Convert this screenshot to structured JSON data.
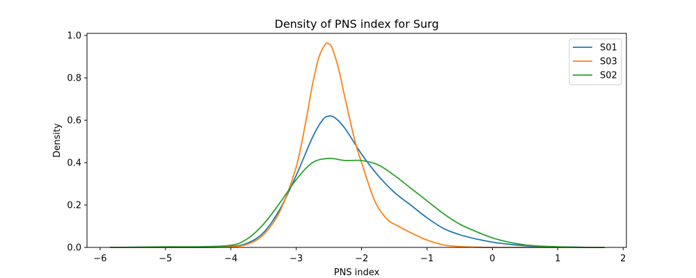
{
  "chart_data": {
    "type": "line",
    "title": "Density of PNS index for Surg",
    "xlabel": "PNS index",
    "ylabel": "Density",
    "xlim": [
      -6.2,
      2.05
    ],
    "ylim": [
      0,
      1.01
    ],
    "xticks": [
      -6,
      -5,
      -4,
      -3,
      -2,
      -1,
      0,
      1,
      2
    ],
    "xtick_labels": [
      "−6",
      "−5",
      "−4",
      "−3",
      "−2",
      "−1",
      "0",
      "1",
      "2"
    ],
    "yticks": [
      0,
      0.2,
      0.4,
      0.6,
      0.8,
      1.0
    ],
    "ytick_labels": [
      "0.0",
      "0.2",
      "0.4",
      "0.6",
      "0.8",
      "1.0"
    ],
    "grid": false,
    "legend_position": "top-right",
    "series": [
      {
        "name": "S01",
        "color": "#1f77b4",
        "x": [
          -5.85,
          -5.0,
          -4.5,
          -4.0,
          -3.75,
          -3.5,
          -3.25,
          -3.0,
          -2.75,
          -2.6,
          -2.5,
          -2.4,
          -2.25,
          -2.0,
          -1.75,
          -1.5,
          -1.25,
          -1.0,
          -0.75,
          -0.5,
          -0.25,
          0.0,
          0.25,
          0.5,
          0.75,
          1.0,
          1.25,
          1.5,
          1.72
        ],
        "values": [
          0.0,
          0.0,
          0.0,
          0.005,
          0.02,
          0.07,
          0.18,
          0.34,
          0.52,
          0.6,
          0.62,
          0.61,
          0.56,
          0.44,
          0.34,
          0.26,
          0.2,
          0.14,
          0.09,
          0.06,
          0.04,
          0.025,
          0.015,
          0.008,
          0.004,
          0.002,
          0.001,
          0.0,
          0.0
        ]
      },
      {
        "name": "S03",
        "color": "#ff7f0e",
        "x": [
          -5.85,
          -5.0,
          -4.5,
          -4.0,
          -3.75,
          -3.5,
          -3.25,
          -3.0,
          -2.85,
          -2.75,
          -2.65,
          -2.55,
          -2.5,
          -2.45,
          -2.35,
          -2.25,
          -2.1,
          -2.0,
          -1.85,
          -1.75,
          -1.6,
          -1.5,
          -1.25,
          -1.0,
          -0.75,
          -0.5,
          -0.25,
          0.0,
          0.5,
          1.0,
          1.5,
          1.72
        ],
        "values": [
          0.0,
          0.0,
          0.0,
          0.003,
          0.015,
          0.06,
          0.17,
          0.38,
          0.6,
          0.77,
          0.9,
          0.96,
          0.96,
          0.94,
          0.84,
          0.7,
          0.5,
          0.4,
          0.26,
          0.19,
          0.13,
          0.11,
          0.07,
          0.035,
          0.012,
          0.004,
          0.001,
          0.0,
          0.0,
          0.0,
          0.0,
          0.0
        ]
      },
      {
        "name": "S02",
        "color": "#2ca02c",
        "x": [
          -5.85,
          -5.0,
          -4.5,
          -4.0,
          -3.75,
          -3.5,
          -3.25,
          -3.0,
          -2.75,
          -2.5,
          -2.25,
          -2.0,
          -1.75,
          -1.5,
          -1.25,
          -1.0,
          -0.75,
          -0.5,
          -0.25,
          0.0,
          0.25,
          0.5,
          0.75,
          1.0,
          1.25,
          1.5,
          1.72
        ],
        "values": [
          0.0,
          0.003,
          0.003,
          0.01,
          0.04,
          0.11,
          0.21,
          0.32,
          0.4,
          0.42,
          0.41,
          0.41,
          0.39,
          0.34,
          0.28,
          0.22,
          0.16,
          0.11,
          0.075,
          0.045,
          0.025,
          0.012,
          0.006,
          0.003,
          0.001,
          0.0,
          0.0
        ]
      }
    ]
  }
}
